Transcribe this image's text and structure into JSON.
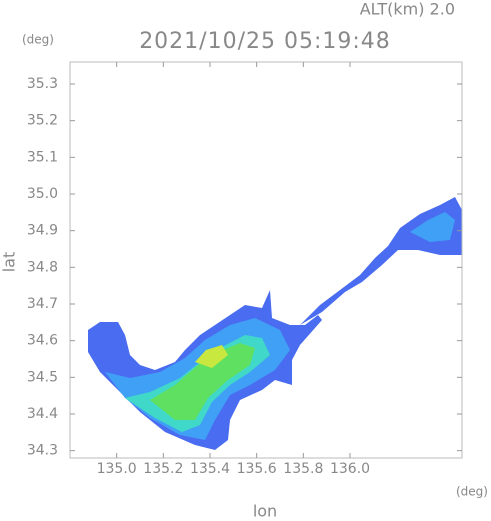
{
  "chart_data": {
    "type": "radar-map",
    "title": "2021/10/25 05:19:48",
    "subtitle": "ALT(km) 2.0",
    "x_label": "lon",
    "y_label": "lat",
    "x_unit": "(deg)",
    "y_unit": "(deg)",
    "xlim": [
      134.8,
      136.48
    ],
    "ylim": [
      34.28,
      35.36
    ],
    "xticks": [
      {
        "value": 135,
        "label": "135.0"
      },
      135.2,
      135.4,
      135.6,
      135.8,
      {
        "value": 136,
        "label": "136.0"
      }
    ],
    "yticks": [
      34.3,
      34.4,
      34.5,
      34.6,
      34.7,
      34.8,
      34.9,
      {
        "value": 35,
        "label": "35.0"
      },
      35.1,
      35.2,
      35.3
    ]
  }
}
